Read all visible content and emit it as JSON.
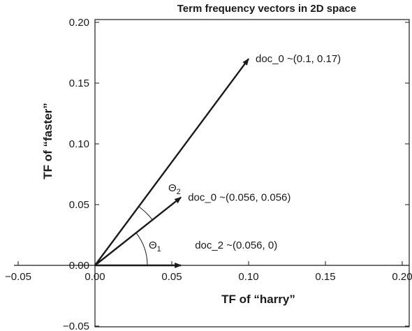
{
  "chart_data": {
    "type": "vector",
    "title": "Term frequency vectors in 2D space",
    "xlabel": "TF of “harry”",
    "ylabel": "TF of “faster”",
    "xlim": [
      -0.05,
      0.2
    ],
    "ylim": [
      -0.05,
      0.2
    ],
    "x_ticks": [
      "−0.05",
      "0.00",
      "0.05",
      "0.10",
      "0.15",
      "0.20"
    ],
    "y_ticks": [
      "−0.05",
      "0.00",
      "0.05",
      "0.10",
      "0.15",
      "0.20"
    ],
    "grid": false,
    "vectors": [
      {
        "label": "doc_0 ~(0.1, 0.17)",
        "x": 0.1,
        "y": 0.17
      },
      {
        "label": "doc_0 ~(0.056, 0.056)",
        "x": 0.056,
        "y": 0.056
      },
      {
        "label": "doc_2 ~(0.056, 0)",
        "x": 0.056,
        "y": 0
      }
    ],
    "angles": [
      {
        "label": "Θ",
        "subscript": "2",
        "between": [
          0,
          1
        ]
      },
      {
        "label": "Θ",
        "subscript": "1",
        "between": [
          1,
          2
        ]
      }
    ]
  }
}
